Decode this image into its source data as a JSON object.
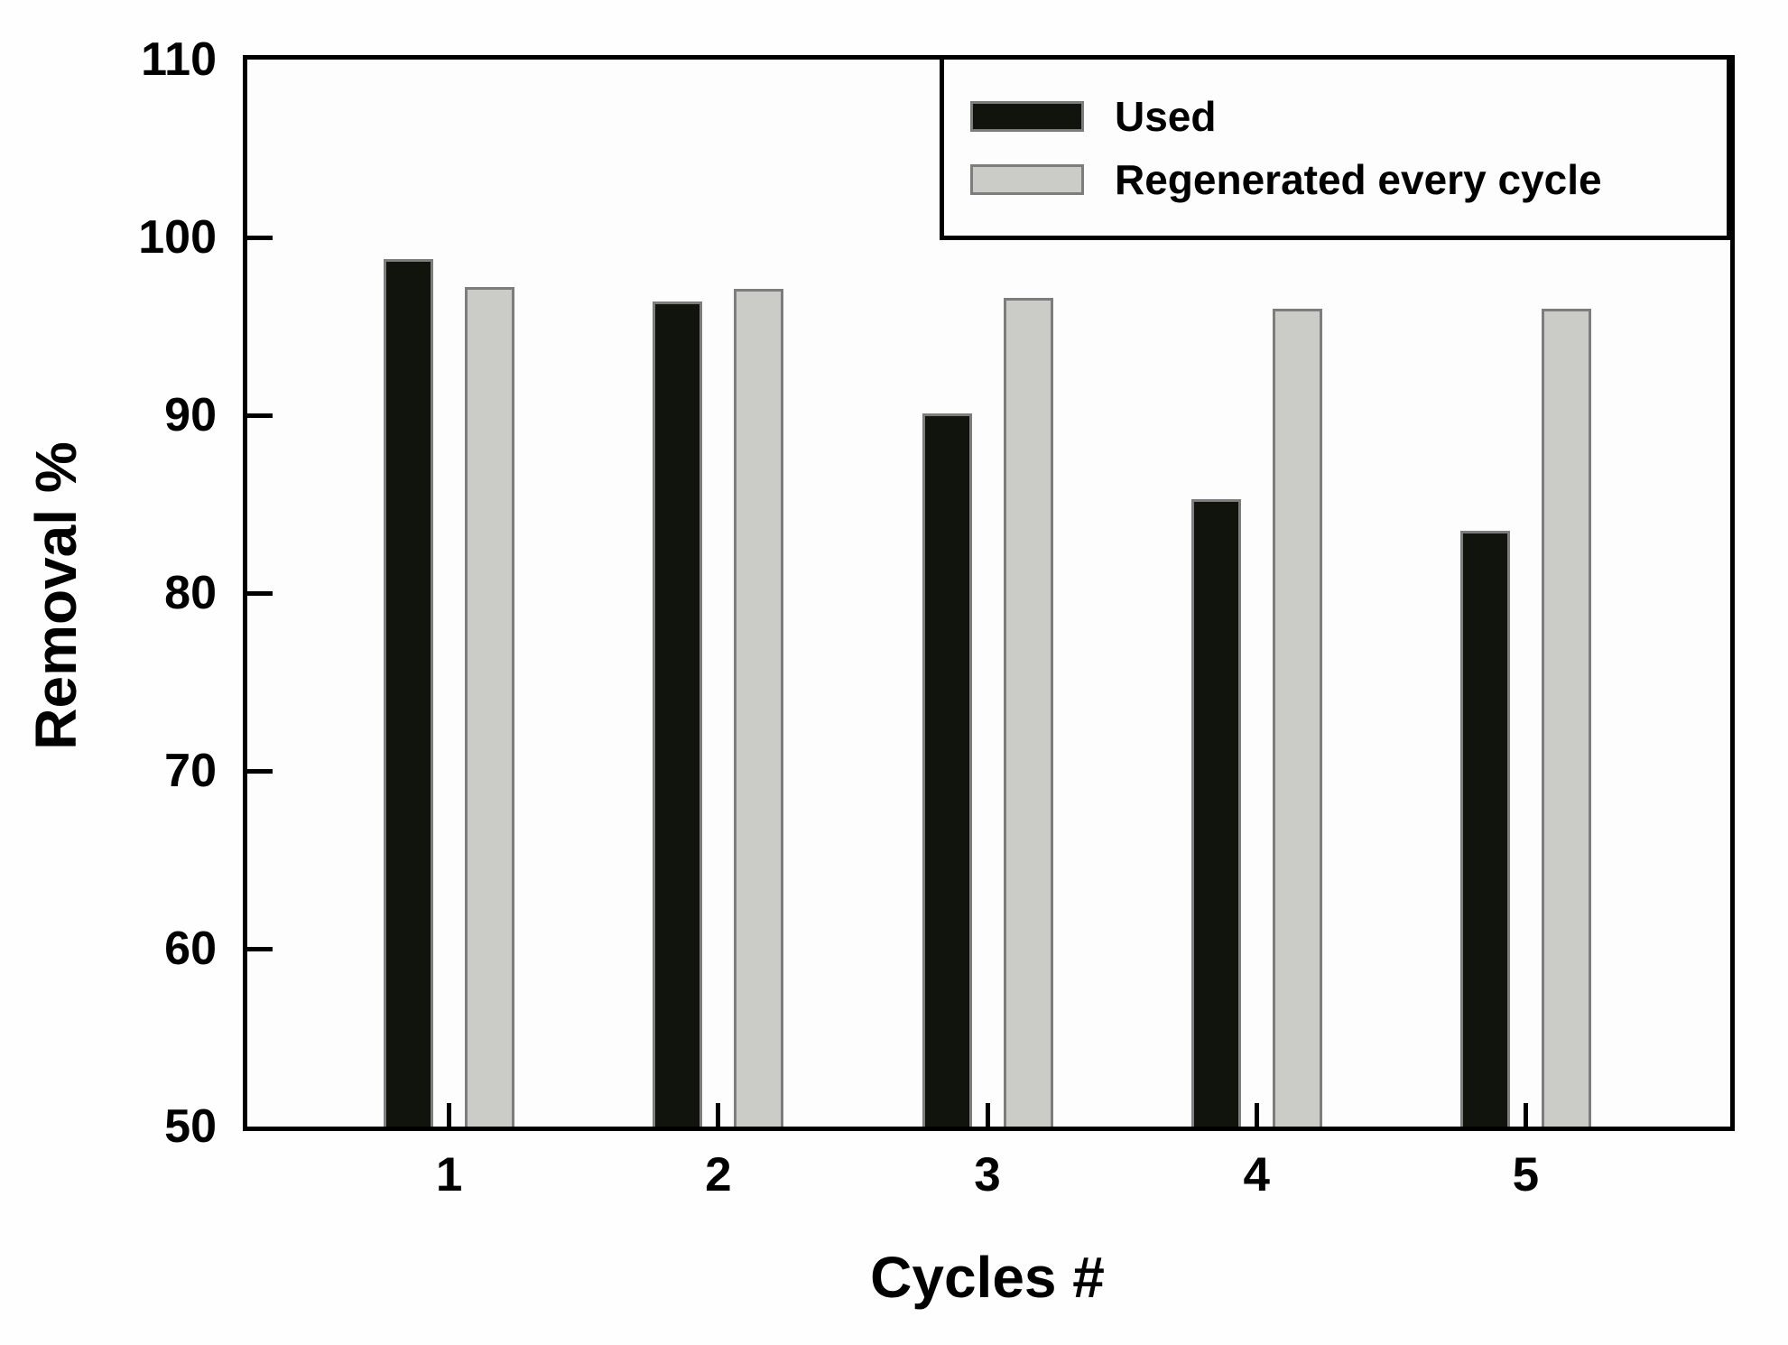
{
  "chart_data": {
    "type": "bar",
    "title": "",
    "xlabel": "Cycles #",
    "ylabel": "Removal %",
    "categories": [
      "1",
      "2",
      "3",
      "4",
      "5"
    ],
    "x": [
      1,
      2,
      3,
      4,
      5
    ],
    "series": [
      {
        "name": "Used",
        "color": "#10140d",
        "values": [
          98.8,
          96.4,
          90.1,
          85.3,
          83.5
        ]
      },
      {
        "name": "Regenerated every cycle",
        "color": "#cbcbc8",
        "values": [
          97.2,
          97.1,
          96.6,
          96.0,
          96.0
        ]
      }
    ],
    "ylim": [
      50,
      110
    ],
    "yticks": [
      50,
      60,
      70,
      80,
      90,
      100,
      110
    ],
    "xlim": [
      0.25,
      5.76
    ],
    "grid": false,
    "legend_position": "top-right",
    "axis_color": "#000000",
    "bar_border_color": "#7d7d7d",
    "background_color": "#fdfdfd"
  }
}
